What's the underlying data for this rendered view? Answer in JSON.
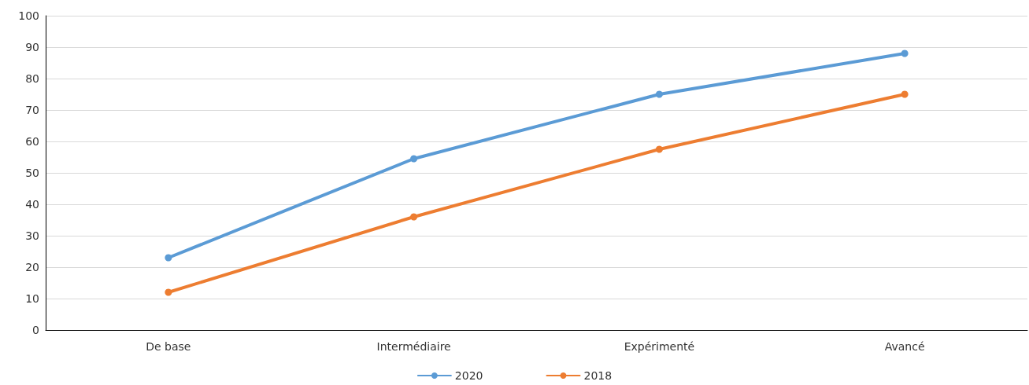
{
  "chart_data": {
    "type": "line",
    "categories": [
      "De base",
      "Intermédiaire",
      "Expérimenté",
      "Avancé"
    ],
    "series": [
      {
        "name": "2020",
        "color": "#5b9bd5",
        "values": [
          23,
          54.5,
          75,
          88
        ]
      },
      {
        "name": "2018",
        "color": "#ed7d31",
        "values": [
          12,
          36,
          57.5,
          75
        ]
      }
    ],
    "ylim": [
      0,
      100
    ],
    "yticks": [
      0,
      10,
      20,
      30,
      40,
      50,
      60,
      70,
      80,
      90,
      100
    ],
    "grid": "y",
    "legend": "bottom",
    "marker": "circle",
    "line_style": "solid"
  }
}
